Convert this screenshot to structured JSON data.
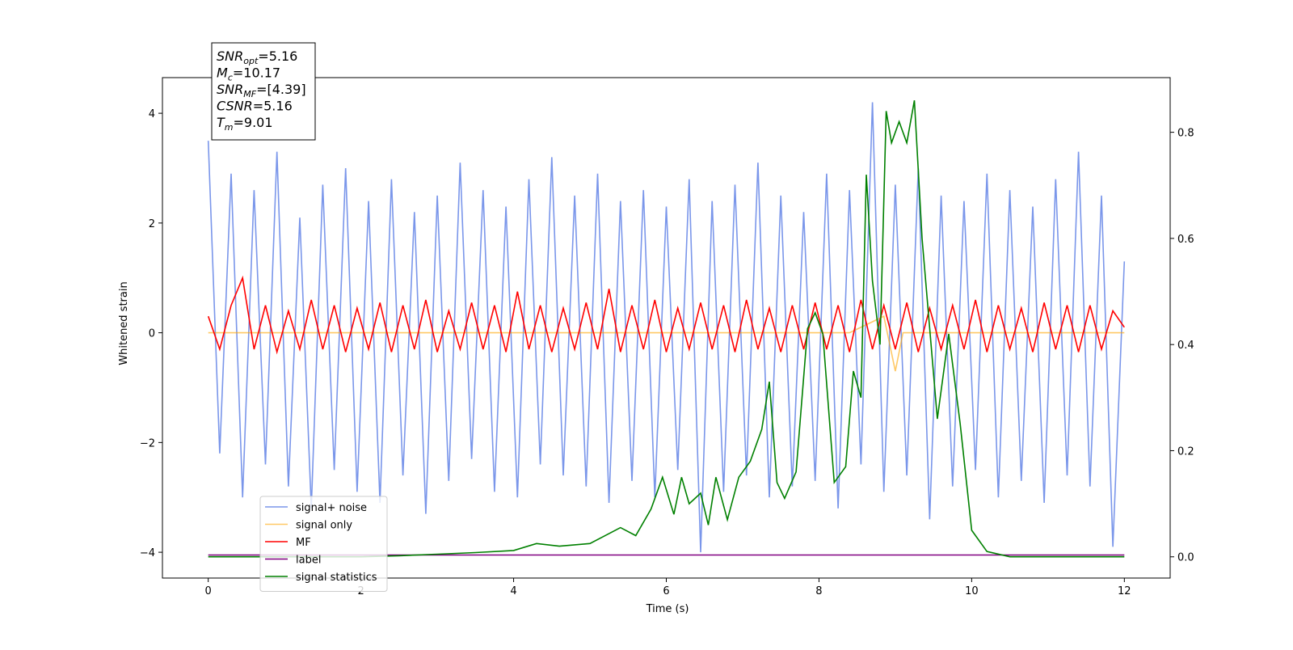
{
  "chart_data": {
    "type": "line",
    "xlabel": "Time (s)",
    "ylabel": "Whitened strain",
    "xlim": [
      -0.6,
      12.6
    ],
    "ylim": [
      -4.47,
      4.65
    ],
    "y2lim": [
      -0.04,
      0.903
    ],
    "xticks": [
      0,
      2,
      4,
      6,
      8,
      10,
      12
    ],
    "yticks": [
      {
        "value": -4,
        "label": "−4"
      },
      {
        "value": -2,
        "label": "−2"
      },
      0,
      2,
      4
    ],
    "y2ticks": [
      {
        "value": 0,
        "label": "0.0"
      },
      0.2,
      0.4,
      0.6,
      0.8
    ],
    "legend": "lower left",
    "annotations": [
      {
        "name": "SNR",
        "sub": "opt",
        "text": "=5.16"
      },
      {
        "name": "M",
        "sub": "c",
        "text": "=10.17"
      },
      {
        "name": "SNR",
        "sub": "MF",
        "text": "=[4.39]"
      },
      {
        "name": "CSNR",
        "text": "=5.16"
      },
      {
        "name": "T",
        "sub": "m",
        "text": "=9.01"
      }
    ],
    "series": [
      {
        "name": "signal+ noise",
        "color": "#4169e1",
        "opacity": 0.7,
        "x": [
          0,
          0.15,
          0.3,
          0.45,
          0.6,
          0.75,
          0.9,
          1.05,
          1.2,
          1.35,
          1.5,
          1.65,
          1.8,
          1.95,
          2.1,
          2.25,
          2.4,
          2.55,
          2.7,
          2.85,
          3,
          3.15,
          3.3,
          3.45,
          3.6,
          3.75,
          3.9,
          4.05,
          4.2,
          4.35,
          4.5,
          4.65,
          4.8,
          4.95,
          5.1,
          5.25,
          5.4,
          5.55,
          5.7,
          5.85,
          6,
          6.15,
          6.3,
          6.45,
          6.6,
          6.75,
          6.9,
          7.05,
          7.2,
          7.35,
          7.5,
          7.65,
          7.8,
          7.95,
          8.1,
          8.25,
          8.4,
          8.55,
          8.7,
          8.85,
          9,
          9.15,
          9.3,
          9.45,
          9.6,
          9.75,
          9.9,
          10.05,
          10.2,
          10.35,
          10.5,
          10.65,
          10.8,
          10.95,
          11.1,
          11.25,
          11.4,
          11.55,
          11.7,
          11.85,
          12
        ],
        "values": [
          3.5,
          -2.2,
          2.9,
          -3.0,
          2.6,
          -2.4,
          3.3,
          -2.8,
          2.1,
          -3.2,
          2.7,
          -2.5,
          3.0,
          -2.9,
          2.4,
          -3.1,
          2.8,
          -2.6,
          2.2,
          -3.3,
          2.5,
          -2.7,
          3.1,
          -2.3,
          2.6,
          -2.9,
          2.3,
          -3.0,
          2.8,
          -2.4,
          3.2,
          -2.6,
          2.5,
          -2.8,
          2.9,
          -3.1,
          2.4,
          -2.7,
          2.6,
          -3.0,
          2.3,
          -2.5,
          2.8,
          -4.0,
          2.4,
          -2.9,
          2.7,
          -2.6,
          3.1,
          -3.0,
          2.5,
          -2.8,
          2.2,
          -2.7,
          2.9,
          -3.2,
          2.6,
          -2.4,
          4.2,
          -2.9,
          2.7,
          -2.6,
          3.0,
          -3.4,
          2.5,
          -2.8,
          2.4,
          -2.5,
          2.9,
          -3.0,
          2.6,
          -2.7,
          2.3,
          -3.1,
          2.8,
          -2.6,
          3.3,
          -2.8,
          2.5,
          -3.9,
          1.3
        ]
      },
      {
        "name": "signal only",
        "color": "#ffa500",
        "opacity": 0.6,
        "x": [
          0,
          8.4,
          8.7,
          8.85,
          9.0,
          9.1,
          12
        ],
        "values": [
          0,
          0,
          0.2,
          0.3,
          -0.7,
          0,
          0
        ]
      },
      {
        "name": "MF",
        "color": "#ff0000",
        "opacity": 1,
        "x": [
          0,
          0.15,
          0.3,
          0.45,
          0.6,
          0.75,
          0.9,
          1.05,
          1.2,
          1.35,
          1.5,
          1.65,
          1.8,
          1.95,
          2.1,
          2.25,
          2.4,
          2.55,
          2.7,
          2.85,
          3,
          3.15,
          3.3,
          3.45,
          3.6,
          3.75,
          3.9,
          4.05,
          4.2,
          4.35,
          4.5,
          4.65,
          4.8,
          4.95,
          5.1,
          5.25,
          5.4,
          5.55,
          5.7,
          5.85,
          6,
          6.15,
          6.3,
          6.45,
          6.6,
          6.75,
          6.9,
          7.05,
          7.2,
          7.35,
          7.5,
          7.65,
          7.8,
          7.95,
          8.1,
          8.25,
          8.4,
          8.55,
          8.7,
          8.85,
          9,
          9.15,
          9.3,
          9.45,
          9.6,
          9.75,
          9.9,
          10.05,
          10.2,
          10.35,
          10.5,
          10.65,
          10.8,
          10.95,
          11.1,
          11.25,
          11.4,
          11.55,
          11.7,
          11.85,
          12
        ],
        "values": [
          0.3,
          -0.3,
          0.5,
          1.0,
          -0.3,
          0.5,
          -0.35,
          0.4,
          -0.3,
          0.6,
          -0.3,
          0.5,
          -0.35,
          0.45,
          -0.3,
          0.55,
          -0.35,
          0.5,
          -0.3,
          0.6,
          -0.35,
          0.4,
          -0.3,
          0.55,
          -0.3,
          0.5,
          -0.35,
          0.75,
          -0.3,
          0.5,
          -0.35,
          0.45,
          -0.3,
          0.55,
          -0.3,
          0.8,
          -0.35,
          0.5,
          -0.3,
          0.6,
          -0.35,
          0.45,
          -0.3,
          0.55,
          -0.3,
          0.5,
          -0.35,
          0.6,
          -0.3,
          0.45,
          -0.35,
          0.5,
          -0.3,
          0.55,
          -0.3,
          0.5,
          -0.35,
          0.6,
          -0.3,
          0.5,
          -0.3,
          0.55,
          -0.35,
          0.45,
          -0.3,
          0.5,
          -0.3,
          0.6,
          -0.35,
          0.5,
          -0.3,
          0.45,
          -0.35,
          0.55,
          -0.3,
          0.5,
          -0.35,
          0.5,
          -0.3,
          0.4,
          0.1
        ]
      },
      {
        "name": "label",
        "color": "#800080",
        "opacity": 1,
        "x": [
          0,
          12
        ],
        "values": [
          -4.05,
          -4.05
        ]
      },
      {
        "name": "signal statistics",
        "color": "#008000",
        "opacity": 1,
        "axis": "y2",
        "x": [
          0,
          0.5,
          1,
          1.5,
          2,
          2.5,
          3,
          3.5,
          4,
          4.3,
          4.6,
          5,
          5.4,
          5.6,
          5.8,
          5.95,
          6.1,
          6.2,
          6.3,
          6.45,
          6.55,
          6.65,
          6.8,
          6.95,
          7.1,
          7.25,
          7.35,
          7.45,
          7.55,
          7.7,
          7.85,
          7.95,
          8.05,
          8.2,
          8.35,
          8.45,
          8.55,
          8.62,
          8.7,
          8.8,
          8.88,
          8.95,
          9.05,
          9.15,
          9.25,
          9.35,
          9.55,
          9.7,
          9.85,
          10,
          10.2,
          10.5,
          11,
          12
        ],
        "values": [
          0,
          0,
          0,
          0,
          0,
          0.002,
          0.005,
          0.008,
          0.012,
          0.025,
          0.02,
          0.025,
          0.055,
          0.04,
          0.09,
          0.15,
          0.08,
          0.15,
          0.1,
          0.12,
          0.06,
          0.15,
          0.07,
          0.15,
          0.18,
          0.24,
          0.33,
          0.14,
          0.11,
          0.16,
          0.43,
          0.46,
          0.42,
          0.14,
          0.17,
          0.35,
          0.3,
          0.72,
          0.52,
          0.4,
          0.84,
          0.78,
          0.82,
          0.78,
          0.86,
          0.6,
          0.26,
          0.42,
          0.25,
          0.05,
          0.01,
          0,
          0,
          0
        ]
      }
    ]
  }
}
